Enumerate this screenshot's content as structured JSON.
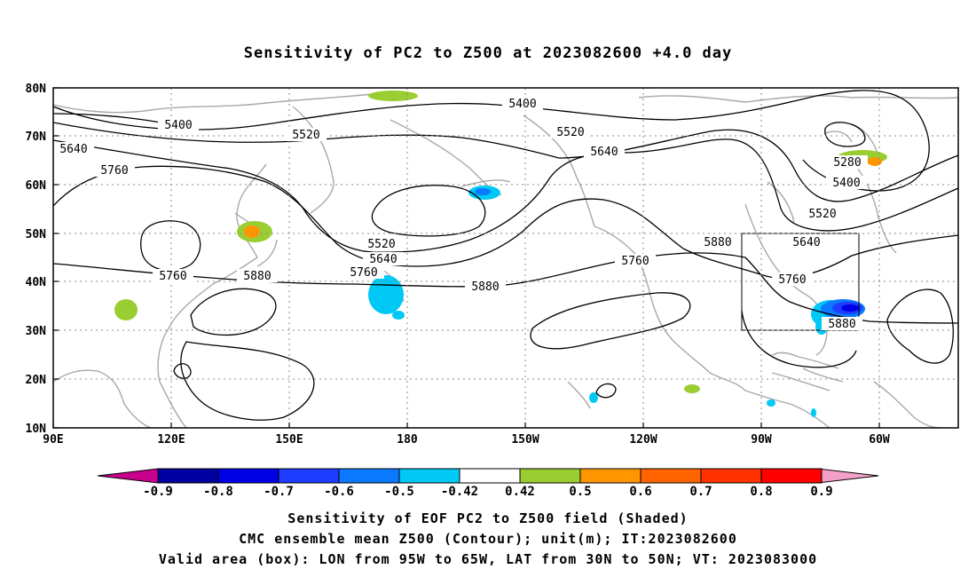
{
  "title": "Sensitivity of PC2 to Z500 at 2023082600 +4.0 day",
  "captions": [
    "Sensitivity of EOF PC2 to Z500 field (Shaded)",
    "CMC ensemble mean Z500 (Contour); unit(m); IT:2023082600",
    "Valid area (box): LON from 95W to 65W, LAT from 30N to 50N; VT: 2023083000"
  ],
  "axes": {
    "lat_labels": [
      "80N",
      "70N",
      "60N",
      "50N",
      "40N",
      "30N",
      "20N",
      "10N"
    ],
    "lon_labels": [
      "90E",
      "120E",
      "150E",
      "180",
      "150W",
      "120W",
      "90W",
      "60W"
    ]
  },
  "contour_labels": {
    "l5400a": "5400",
    "l5400b": "5400",
    "l5400c": "5400",
    "l5520a": "5520",
    "l5520b": "5520",
    "l5520c": "5520",
    "l5520d": "5520",
    "l5640a": "5640",
    "l5640b": "5640",
    "l5640c": "5640",
    "l5640d": "5640",
    "l5760a": "5760",
    "l5760b": "5760",
    "l5760c": "5760",
    "l5760d": "5760",
    "l5760e": "5760",
    "l5880a": "5880",
    "l5880b": "5880",
    "l5880c": "5880",
    "l5880d": "5880",
    "l5280": "5280"
  },
  "colorbar": {
    "labels": [
      "-0.9",
      "-0.8",
      "-0.7",
      "-0.6",
      "-0.5",
      "-0.42",
      "0.42",
      "0.5",
      "0.6",
      "0.7",
      "0.8",
      "0.9"
    ],
    "colors": [
      "#0000a0",
      "#0000e6",
      "#1e3cff",
      "#0a78ff",
      "#00c8f5",
      "#ffffff",
      "#9acd32",
      "#ff9600",
      "#ff6400",
      "#ff3200",
      "#ff0000"
    ],
    "low_extend": "#c8008c",
    "high_extend": "#f5a0c8"
  },
  "valid_box": {
    "lon_from": "95W",
    "lon_to": "65W",
    "lat_from": "30N",
    "lat_to": "50N"
  }
}
